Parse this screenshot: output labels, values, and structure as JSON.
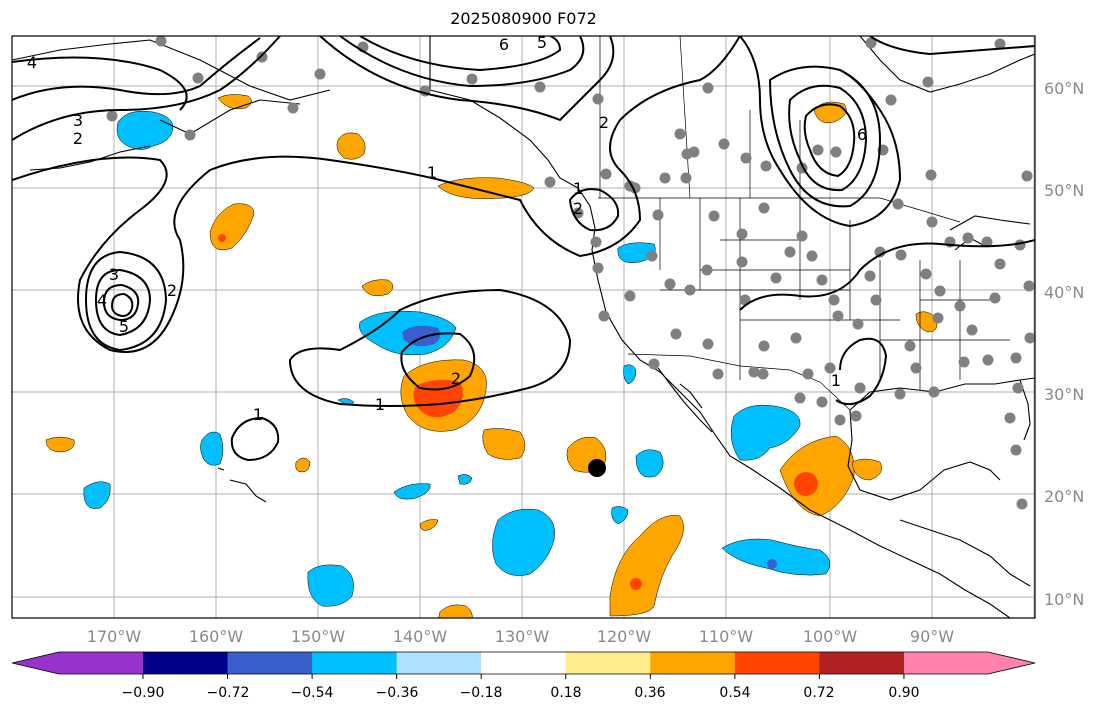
{
  "title": "2025080900 F072",
  "lat_labels": [
    "60°N",
    "50°N",
    "40°N",
    "30°N",
    "20°N",
    "10°N"
  ],
  "lon_labels": [
    "170°W",
    "160°W",
    "150°W",
    "140°W",
    "130°W",
    "120°W",
    "110°W",
    "100°W",
    "90°W"
  ],
  "colorbar": {
    "colors": [
      "#9932cc",
      "#00008b",
      "#3a5fcd",
      "#00bfff",
      "#b0e2ff",
      "#ffffff",
      "#ffec8b",
      "#ffa500",
      "#ff4500",
      "#b22222",
      "#ff82ab"
    ],
    "tick_labels": [
      "−0.90",
      "−0.72",
      "−0.54",
      "−0.36",
      "−0.18",
      "0.18",
      "0.36",
      "0.54",
      "0.72",
      "0.90"
    ]
  },
  "contour_labels": [
    "4",
    "3",
    "2",
    "6",
    "5",
    "2",
    "6",
    "1",
    "3",
    "1",
    "2",
    "4",
    "5",
    "2",
    "1",
    "2",
    "1",
    "1"
  ],
  "map_colors": {
    "land_outline": "#000000",
    "grid": "#b0b0b0",
    "station_dot": "#808080",
    "marker": "#000000"
  }
}
